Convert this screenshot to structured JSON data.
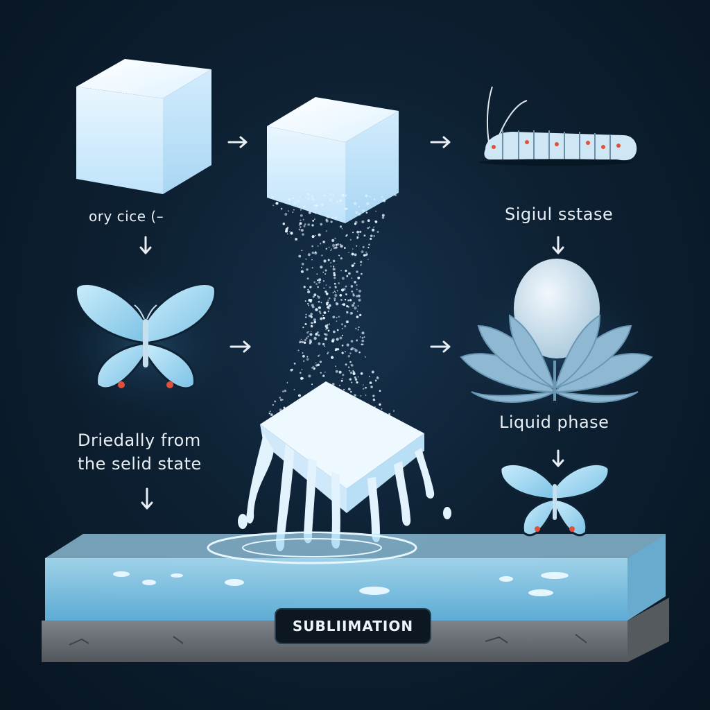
{
  "labels": {
    "dry_ice": "ory cice  (–",
    "sigiul": "Sigiul sstase",
    "driedally": "Driedally from\nthe selid state",
    "liquid": "Liquid phase",
    "sublimation": "SUBLIIMATION"
  },
  "colors": {
    "background": "#0d2032",
    "ice": "#e6f4ff",
    "water": "#7fc8ea",
    "ground": "#6b7075",
    "butterfly_wing": "#9fd4ee",
    "accent_red": "#e0503a"
  },
  "icons": [
    "ice-cube",
    "falling-particles",
    "melting-ice",
    "water-pool",
    "caterpillar",
    "egg-on-leaves",
    "butterfly",
    "arrow"
  ]
}
